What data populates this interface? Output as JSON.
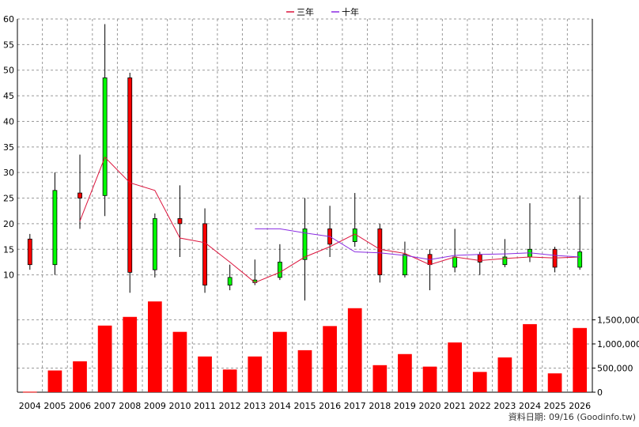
{
  "chart_data": {
    "type": "candlestick",
    "legend": {
      "placement": "top-center",
      "items": [
        {
          "label": "三年",
          "color": "#dc143c"
        },
        {
          "label": "十年",
          "color": "#8a2be2"
        }
      ]
    },
    "years": [
      "2004",
      "2005",
      "2006",
      "2007",
      "2008",
      "2009",
      "2010",
      "2011",
      "2012",
      "2013",
      "2014",
      "2015",
      "2016",
      "2017",
      "2018",
      "2019",
      "2020",
      "2021",
      "2022",
      "2023",
      "2024",
      "2025",
      "2026"
    ],
    "price_axis": {
      "min": 5,
      "max": 60,
      "ticks": [
        10,
        15,
        20,
        25,
        30,
        35,
        40,
        45,
        50,
        55,
        60
      ],
      "position": "left"
    },
    "volume_axis": {
      "min": 0,
      "max": 1900000,
      "ticks": [
        0,
        500000,
        1000000,
        1500000
      ],
      "tick_labels": [
        "0",
        "500,000",
        "1,000,000",
        "1,500,000"
      ],
      "position": "right"
    },
    "candles": [
      {
        "year": "2004",
        "open": 12,
        "close": 17,
        "high": 18,
        "low": 11
      },
      {
        "year": "2005",
        "open": 26.5,
        "close": 12,
        "high": 30,
        "low": 10
      },
      {
        "year": "2006",
        "open": 25,
        "close": 26,
        "high": 33.5,
        "low": 19
      },
      {
        "year": "2007",
        "open": 48.5,
        "close": 25.5,
        "high": 59,
        "low": 21.5
      },
      {
        "year": "2008",
        "open": 10.5,
        "close": 48.5,
        "high": 49.5,
        "low": 6.5
      },
      {
        "year": "2009",
        "open": 21,
        "close": 11,
        "high": 22,
        "low": 9.5
      },
      {
        "year": "2010",
        "open": 20,
        "close": 21,
        "high": 27.5,
        "low": 13.5
      },
      {
        "year": "2011",
        "open": 8,
        "close": 20,
        "high": 23,
        "low": 6.5
      },
      {
        "year": "2012",
        "open": 9.5,
        "close": 8,
        "high": 12,
        "low": 7
      },
      {
        "year": "2013",
        "open": 9,
        "close": 8.5,
        "high": 13,
        "low": 8
      },
      {
        "year": "2014",
        "open": 12.5,
        "close": 9.5,
        "high": 16,
        "low": 9
      },
      {
        "year": "2015",
        "open": 19,
        "close": 13,
        "high": 25,
        "low": 5
      },
      {
        "year": "2016",
        "open": 16,
        "close": 19,
        "high": 23.5,
        "low": 13.5
      },
      {
        "year": "2017",
        "open": 19,
        "close": 16.5,
        "high": 26,
        "low": 15.5
      },
      {
        "year": "2018",
        "open": 10,
        "close": 19,
        "high": 20,
        "low": 8.5
      },
      {
        "year": "2019",
        "open": 14,
        "close": 10,
        "high": 16.5,
        "low": 9.5
      },
      {
        "year": "2020",
        "open": 12,
        "close": 14,
        "high": 15,
        "low": 7
      },
      {
        "year": "2021",
        "open": 13.5,
        "close": 11.5,
        "high": 19,
        "low": 10.5
      },
      {
        "year": "2022",
        "open": 12.5,
        "close": 14,
        "high": 14.5,
        "low": 10
      },
      {
        "year": "2023",
        "open": 13.5,
        "close": 12,
        "high": 17,
        "low": 11.5
      },
      {
        "year": "2024",
        "open": 15,
        "close": 13.5,
        "high": 24,
        "low": 12.5
      },
      {
        "year": "2025",
        "open": 11.5,
        "close": 15,
        "high": 15.5,
        "low": 10.5
      },
      {
        "year": "2026",
        "open": 14.5,
        "close": 11.5,
        "high": 25.5,
        "low": 11
      }
    ],
    "series": [
      {
        "name": "三年",
        "color": "#dc143c",
        "points": [
          {
            "year": "2006",
            "value": 20.5
          },
          {
            "year": "2007",
            "value": 33
          },
          {
            "year": "2008",
            "value": 28
          },
          {
            "year": "2009",
            "value": 26.5
          },
          {
            "year": "2010",
            "value": 17.2
          },
          {
            "year": "2011",
            "value": 16.3
          },
          {
            "year": "2012",
            "value": 12.5
          },
          {
            "year": "2013",
            "value": 8.5
          },
          {
            "year": "2014",
            "value": 10.5
          },
          {
            "year": "2015",
            "value": 13.5
          },
          {
            "year": "2016",
            "value": 15.5
          },
          {
            "year": "2017",
            "value": 18
          },
          {
            "year": "2018",
            "value": 15
          },
          {
            "year": "2019",
            "value": 14.2
          },
          {
            "year": "2020",
            "value": 12
          },
          {
            "year": "2021",
            "value": 13.5
          },
          {
            "year": "2022",
            "value": 12.8
          },
          {
            "year": "2023",
            "value": 13.2
          },
          {
            "year": "2024",
            "value": 13.5
          },
          {
            "year": "2025",
            "value": 13.3
          },
          {
            "year": "2026",
            "value": 13.5
          }
        ]
      },
      {
        "name": "十年",
        "color": "#8a2be2",
        "points": [
          {
            "year": "2013",
            "value": 19
          },
          {
            "year": "2014",
            "value": 19
          },
          {
            "year": "2015",
            "value": 18.2
          },
          {
            "year": "2016",
            "value": 17.5
          },
          {
            "year": "2017",
            "value": 14.5
          },
          {
            "year": "2018",
            "value": 14.3
          },
          {
            "year": "2019",
            "value": 13.8
          },
          {
            "year": "2020",
            "value": 13
          },
          {
            "year": "2021",
            "value": 13.8
          },
          {
            "year": "2022",
            "value": 14
          },
          {
            "year": "2023",
            "value": 14.1
          },
          {
            "year": "2024",
            "value": 14.3
          },
          {
            "year": "2025",
            "value": 13.8
          },
          {
            "year": "2026",
            "value": 13.5
          }
        ]
      }
    ],
    "volume": [
      {
        "year": "2004",
        "value": 10000
      },
      {
        "year": "2005",
        "value": 450000
      },
      {
        "year": "2006",
        "value": 640000
      },
      {
        "year": "2007",
        "value": 1380000
      },
      {
        "year": "2008",
        "value": 1560000
      },
      {
        "year": "2009",
        "value": 1880000
      },
      {
        "year": "2010",
        "value": 1250000
      },
      {
        "year": "2011",
        "value": 740000
      },
      {
        "year": "2012",
        "value": 470000
      },
      {
        "year": "2013",
        "value": 740000
      },
      {
        "year": "2014",
        "value": 1250000
      },
      {
        "year": "2015",
        "value": 870000
      },
      {
        "year": "2016",
        "value": 1370000
      },
      {
        "year": "2017",
        "value": 1740000
      },
      {
        "year": "2018",
        "value": 560000
      },
      {
        "year": "2019",
        "value": 790000
      },
      {
        "year": "2020",
        "value": 530000
      },
      {
        "year": "2021",
        "value": 1030000
      },
      {
        "year": "2022",
        "value": 420000
      },
      {
        "year": "2023",
        "value": 720000
      },
      {
        "year": "2024",
        "value": 1410000
      },
      {
        "year": "2025",
        "value": 390000
      },
      {
        "year": "2026",
        "value": 1330000
      }
    ],
    "grid": true,
    "colors": {
      "up": "#ff0000",
      "down": "#00ff00",
      "candle_border": "#000000",
      "volume": "#ff0000",
      "grid": "#999999"
    },
    "source_note": "資料日期: 09/16 (Goodinfo.tw)"
  }
}
